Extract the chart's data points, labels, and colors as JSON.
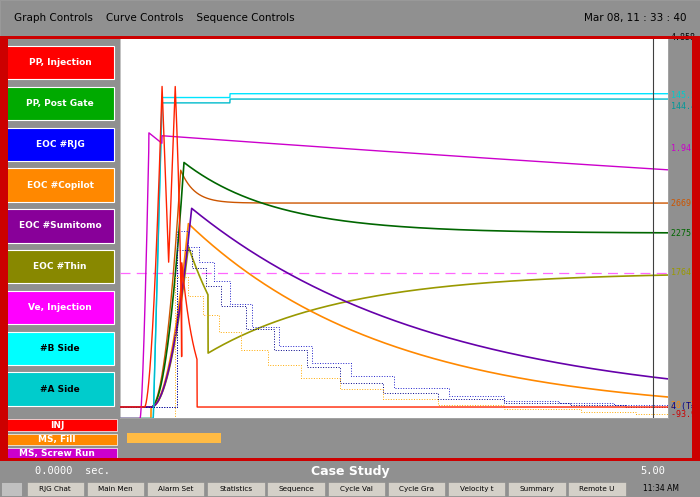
{
  "bg_color": "#c0c0c0",
  "plot_bg": "#ffffff",
  "header_bg": "#d4d0c8",
  "header_text": "Graph Controls    Curve Controls    Sequence Controls",
  "timestamp": "Mar 08, 11 : 33 : 40",
  "bottom_label": "Case Study",
  "x_start": "0.0000",
  "x_end": "5.00",
  "legend_items": [
    {
      "label": "PP, Injection",
      "bg": "#ff0000",
      "fg": "#ffffff"
    },
    {
      "label": "PP, Post Gate",
      "bg": "#00aa00",
      "fg": "#ffffff"
    },
    {
      "label": "EOC #RJG",
      "bg": "#0000ff",
      "fg": "#ffffff"
    },
    {
      "label": "EOC #Copilot",
      "bg": "#ff8800",
      "fg": "#ffffff"
    },
    {
      "label": "EOC #Sumitomo",
      "bg": "#880099",
      "fg": "#ffffff"
    },
    {
      "label": "EOC #Thin",
      "bg": "#888800",
      "fg": "#ffffff"
    },
    {
      "label": "Ve, Injection",
      "bg": "#ff00ff",
      "fg": "#ffffff"
    },
    {
      "label": "#B Side",
      "bg": "#00ffff",
      "fg": "#000000"
    },
    {
      "label": "#A Side",
      "bg": "#00cccc",
      "fg": "#000000"
    }
  ],
  "bottom_labels": [
    {
      "label": "INJ",
      "bg": "#ff0000",
      "fg": "#ffffff"
    },
    {
      "label": "MS, Fill",
      "bg": "#ff8800",
      "fg": "#ffffff"
    },
    {
      "label": "MS, Screw Run",
      "bg": "#cc00cc",
      "fg": "#ffffff"
    }
  ],
  "ymin": -150,
  "ymax": 4858,
  "xmin": 0,
  "xmax": 5
}
